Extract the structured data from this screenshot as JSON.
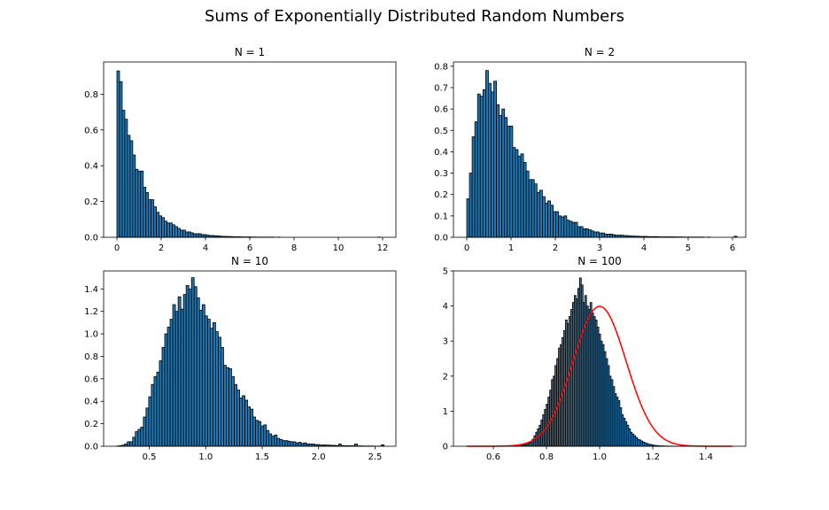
{
  "title": "Sums of Exponentially Distributed Random Numbers",
  "colors": {
    "bar_fill": "#1f77b4",
    "bar_edge": "#000000",
    "curve": "#ff0000"
  },
  "chart_data": [
    {
      "type": "bar",
      "title": "N = 1",
      "xlabel": "",
      "ylabel": "",
      "xlim": [
        -0.6,
        12.6
      ],
      "ylim": [
        0,
        0.98
      ],
      "xticks": [
        0,
        2,
        4,
        6,
        8,
        10,
        12
      ],
      "yticks": [
        0.0,
        0.2,
        0.4,
        0.6,
        0.8
      ],
      "bin_start": 0.0,
      "bin_width": 0.119,
      "values": [
        0.93,
        0.87,
        0.71,
        0.66,
        0.57,
        0.54,
        0.46,
        0.38,
        0.37,
        0.37,
        0.28,
        0.25,
        0.21,
        0.21,
        0.17,
        0.14,
        0.12,
        0.11,
        0.09,
        0.08,
        0.08,
        0.07,
        0.06,
        0.05,
        0.04,
        0.04,
        0.03,
        0.03,
        0.025,
        0.02,
        0.02,
        0.02,
        0.015,
        0.015,
        0.012,
        0.01,
        0.01,
        0.008,
        0.008,
        0.006,
        0.005,
        0.005,
        0.004,
        0.004,
        0.003,
        0.003,
        0.003,
        0.002,
        0.002,
        0.002,
        0.002,
        0.0015,
        0.0015,
        0.001,
        0.001,
        0.001,
        0.001,
        0.001,
        0.001,
        0.001,
        0,
        0.001,
        0,
        0,
        0,
        0,
        0,
        0,
        0,
        0,
        0,
        0,
        0,
        0,
        0,
        0,
        0,
        0,
        0,
        0,
        0,
        0,
        0,
        0,
        0,
        0,
        0,
        0,
        0,
        0,
        0,
        0,
        0,
        0,
        0,
        0,
        0,
        0,
        0,
        0.001
      ]
    },
    {
      "type": "bar",
      "title": "N = 2",
      "xlabel": "",
      "ylabel": "",
      "xlim": [
        -0.3,
        6.3
      ],
      "ylim": [
        0,
        0.82
      ],
      "xticks": [
        0,
        1,
        2,
        3,
        4,
        5,
        6
      ],
      "yticks": [
        0.0,
        0.1,
        0.2,
        0.3,
        0.4,
        0.5,
        0.6,
        0.7,
        0.8
      ],
      "bin_start": 0.0,
      "bin_width": 0.061,
      "values": [
        0.18,
        0.3,
        0.47,
        0.54,
        0.67,
        0.66,
        0.69,
        0.78,
        0.72,
        0.68,
        0.73,
        0.62,
        0.57,
        0.6,
        0.56,
        0.52,
        0.52,
        0.42,
        0.41,
        0.38,
        0.39,
        0.35,
        0.31,
        0.27,
        0.27,
        0.25,
        0.21,
        0.22,
        0.19,
        0.16,
        0.17,
        0.15,
        0.12,
        0.12,
        0.1,
        0.095,
        0.1,
        0.08,
        0.075,
        0.07,
        0.07,
        0.05,
        0.05,
        0.04,
        0.04,
        0.035,
        0.03,
        0.025,
        0.025,
        0.02,
        0.02,
        0.015,
        0.015,
        0.015,
        0.012,
        0.01,
        0.01,
        0.01,
        0.008,
        0.008,
        0.006,
        0.006,
        0.005,
        0.005,
        0.004,
        0.004,
        0.004,
        0.003,
        0.003,
        0.003,
        0.003,
        0.002,
        0.002,
        0.002,
        0.002,
        0.002,
        0.002,
        0.0015,
        0.0015,
        0.0015,
        0.001,
        0.001,
        0.001,
        0.001,
        0.001,
        0.001,
        0.001,
        0.001,
        0,
        0.001,
        0,
        0,
        0,
        0,
        0,
        0,
        0,
        0,
        0,
        0.005
      ]
    },
    {
      "type": "bar",
      "title": "N = 10",
      "xlabel": "",
      "ylabel": "",
      "xlim": [
        0.095,
        2.685
      ],
      "ylim": [
        0,
        1.56
      ],
      "xticks": [
        0.5,
        1.0,
        1.5,
        2.0,
        2.5
      ],
      "yticks": [
        0.0,
        0.2,
        0.4,
        0.6,
        0.8,
        1.0,
        1.2,
        1.4
      ],
      "bin_start": 0.21,
      "bin_width": 0.0237,
      "values": [
        0.002,
        0.005,
        0.01,
        0.02,
        0.04,
        0.04,
        0.08,
        0.13,
        0.15,
        0.17,
        0.26,
        0.34,
        0.44,
        0.55,
        0.62,
        0.66,
        0.76,
        0.88,
        1.0,
        1.06,
        1.13,
        1.26,
        1.2,
        1.33,
        1.22,
        1.35,
        1.43,
        1.4,
        1.5,
        1.42,
        1.32,
        1.21,
        1.26,
        1.16,
        1.13,
        1.05,
        1.1,
        1.02,
        0.97,
        0.88,
        0.72,
        0.7,
        0.69,
        0.62,
        0.55,
        0.5,
        0.43,
        0.45,
        0.41,
        0.35,
        0.33,
        0.26,
        0.23,
        0.22,
        0.18,
        0.19,
        0.14,
        0.11,
        0.09,
        0.1,
        0.07,
        0.06,
        0.05,
        0.05,
        0.045,
        0.04,
        0.04,
        0.03,
        0.035,
        0.025,
        0.03,
        0.02,
        0.02,
        0.02,
        0.015,
        0.015,
        0.01,
        0.012,
        0.01,
        0.01,
        0.008,
        0.008,
        0.006,
        0.02,
        0.006,
        0.005,
        0.005,
        0.004,
        0.004,
        0.02,
        0.003,
        0.003,
        0.002,
        0.002,
        0.002,
        0.002,
        0.001,
        0.001,
        0.001,
        0.012
      ]
    },
    {
      "type": "bar",
      "title": "N = 100",
      "xlabel": "",
      "ylabel": "",
      "xlim": [
        0.45,
        1.55
      ],
      "ylim": [
        0,
        5.0
      ],
      "xticks": [
        0.6,
        0.8,
        1.0,
        1.2,
        1.4
      ],
      "yticks": [
        0,
        1,
        2,
        3,
        4,
        5
      ],
      "bin_start": 0.667,
      "bin_width": 0.0066,
      "values": [
        0.002,
        0.004,
        0.006,
        0.008,
        0.01,
        0.02,
        0.03,
        0.04,
        0.05,
        0.07,
        0.1,
        0.14,
        0.2,
        0.3,
        0.4,
        0.5,
        0.6,
        0.75,
        0.9,
        1.05,
        1.2,
        1.4,
        1.6,
        1.9,
        2.0,
        2.3,
        2.5,
        2.8,
        2.9,
        3.1,
        3.3,
        3.6,
        3.5,
        3.7,
        3.9,
        4.1,
        4.3,
        4.2,
        4.5,
        4.8,
        4.6,
        4.1,
        4.3,
        4.0,
        3.9,
        4.1,
        3.8,
        3.7,
        3.6,
        3.4,
        3.2,
        3.0,
        2.9,
        2.7,
        2.5,
        2.3,
        2.0,
        1.9,
        1.7,
        1.5,
        1.4,
        1.3,
        1.1,
        0.9,
        0.8,
        0.7,
        0.6,
        0.5,
        0.4,
        0.35,
        0.3,
        0.25,
        0.2,
        0.18,
        0.15,
        0.12,
        0.1,
        0.08,
        0.06,
        0.05,
        0.04,
        0.03,
        0.02,
        0.02,
        0.015,
        0.01,
        0.01,
        0.008,
        0.006,
        0.005,
        0.004,
        0.003,
        0.002,
        0.002,
        0.001,
        0.001,
        0.001,
        0.001,
        0.001,
        0.001
      ],
      "curve": {
        "type": "normal",
        "mean": 1.0,
        "std": 0.1,
        "x_range": [
          0.5,
          1.5
        ],
        "color": "#ff0000"
      }
    }
  ]
}
